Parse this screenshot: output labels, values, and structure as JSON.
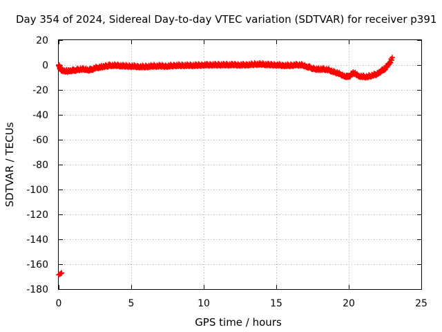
{
  "chart_data": {
    "type": "scatter",
    "title": "Day 354 of 2024, Sidereal Day-to-day VTEC variation (SDTVAR) for receiver p391",
    "xlabel": "GPS time / hours",
    "ylabel": "SDTVAR / TECUs",
    "xlim": [
      0,
      25
    ],
    "ylim": [
      -180,
      20
    ],
    "xticks": [
      0,
      5,
      10,
      15,
      20,
      25
    ],
    "yticks": [
      20,
      0,
      -20,
      -40,
      -60,
      -80,
      -100,
      -120,
      -140,
      -160,
      -180
    ],
    "grid": true,
    "marker": "plus",
    "color": "#ff0000",
    "series": [
      {
        "name": "SDTVAR",
        "trace": [
          [
            0.0,
            0.5
          ],
          [
            0.05,
            -1
          ],
          [
            0.1,
            -3
          ],
          [
            0.2,
            -4
          ],
          [
            0.4,
            -4.5
          ],
          [
            0.6,
            -4.5
          ],
          [
            0.8,
            -4
          ],
          [
            1.0,
            -4
          ],
          [
            1.2,
            -3.5
          ],
          [
            1.5,
            -3
          ],
          [
            1.8,
            -3
          ],
          [
            2.0,
            -3.5
          ],
          [
            2.2,
            -3.5
          ],
          [
            2.5,
            -2
          ],
          [
            2.8,
            -1.5
          ],
          [
            3.0,
            -1
          ],
          [
            3.3,
            -0.5
          ],
          [
            3.5,
            0
          ],
          [
            4.0,
            0
          ],
          [
            4.5,
            -0.5
          ],
          [
            5.0,
            -0.5
          ],
          [
            5.5,
            -1
          ],
          [
            6.0,
            -1
          ],
          [
            6.5,
            -0.5
          ],
          [
            7.0,
            -0.5
          ],
          [
            7.5,
            -0.5
          ],
          [
            8.0,
            0
          ],
          [
            8.5,
            0
          ],
          [
            9.0,
            0
          ],
          [
            9.5,
            0
          ],
          [
            10.0,
            0.5
          ],
          [
            10.5,
            0.5
          ],
          [
            11.0,
            0.5
          ],
          [
            11.5,
            0.5
          ],
          [
            12.0,
            0.5
          ],
          [
            12.5,
            0.5
          ],
          [
            13.0,
            0.5
          ],
          [
            13.5,
            1
          ],
          [
            14.0,
            1
          ],
          [
            14.5,
            0.5
          ],
          [
            15.0,
            0.5
          ],
          [
            15.5,
            0
          ],
          [
            16.0,
            0
          ],
          [
            16.3,
            0.5
          ],
          [
            16.6,
            0.5
          ],
          [
            16.9,
            0
          ],
          [
            17.1,
            -1
          ],
          [
            17.3,
            -1.5
          ],
          [
            17.5,
            -2.5
          ],
          [
            17.8,
            -3
          ],
          [
            18.0,
            -3
          ],
          [
            18.3,
            -3
          ],
          [
            18.6,
            -3.5
          ],
          [
            18.9,
            -5
          ],
          [
            19.2,
            -6
          ],
          [
            19.5,
            -7.5
          ],
          [
            19.7,
            -8.5
          ],
          [
            19.9,
            -9
          ],
          [
            20.1,
            -8
          ],
          [
            20.3,
            -6
          ],
          [
            20.5,
            -7
          ],
          [
            20.7,
            -8.5
          ],
          [
            21.0,
            -9
          ],
          [
            21.3,
            -9
          ],
          [
            21.6,
            -8
          ],
          [
            21.9,
            -7
          ],
          [
            22.1,
            -5.5
          ],
          [
            22.3,
            -4
          ],
          [
            22.5,
            -2.5
          ],
          [
            22.7,
            0.5
          ],
          [
            22.85,
            3
          ],
          [
            23.0,
            6
          ]
        ],
        "outliers": [
          [
            0.0,
            -168.5
          ],
          [
            0.08,
            -168
          ],
          [
            0.15,
            -167.5
          ],
          [
            0.2,
            -167
          ]
        ]
      }
    ]
  }
}
